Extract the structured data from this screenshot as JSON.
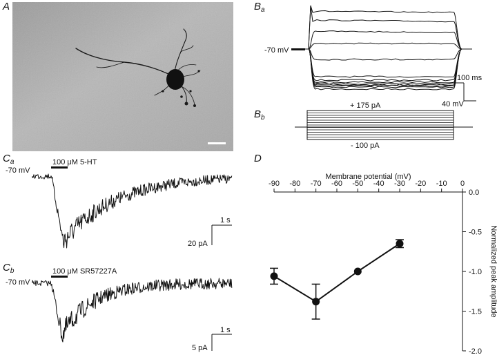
{
  "panels": {
    "A": {
      "label": "A"
    },
    "Ba": {
      "label": "B",
      "sub": "a",
      "holding": "-70 mV",
      "time_scale": "100 ms",
      "volt_scale": "40 mV"
    },
    "Bb": {
      "label": "B",
      "sub": "b",
      "top_step": "+ 175 pA",
      "bottom_step": "- 100 pA"
    },
    "Ca": {
      "label": "C",
      "sub": "a",
      "drug": "100 μM 5-HT",
      "holding": "-70 mV",
      "time_scale": "1 s",
      "amp_scale": "20 pA"
    },
    "Cb": {
      "label": "C",
      "sub": "b",
      "drug": "100 μM SR57227A",
      "holding": "-70 mV",
      "time_scale": "1 s",
      "amp_scale": "5 pA"
    },
    "D": {
      "label": "D"
    }
  },
  "chart_data": {
    "type": "line",
    "xlabel": "Membrane potential (mV)",
    "ylabel": "Normalized peak amplitude",
    "xlim": [
      -90,
      0
    ],
    "ylim": [
      -2.0,
      0.0
    ],
    "xticks": [
      -90,
      -80,
      -70,
      -60,
      -50,
      -40,
      -30,
      -20,
      -10,
      0
    ],
    "yticks": [
      0.0,
      -0.5,
      -1.0,
      -1.5,
      -2.0
    ],
    "xtick_labels": [
      "-90",
      "-80",
      "-70",
      "-60",
      "-50",
      "-40",
      "-30",
      "-20",
      "-10",
      "0"
    ],
    "ytick_labels": [
      "0.0",
      "-0.5",
      "-1.0",
      "-1.5",
      "-2.0"
    ],
    "series": [
      {
        "x": [
          -90,
          -70,
          -50,
          -30
        ],
        "values": [
          -1.06,
          -1.38,
          -1.0,
          -0.65
        ],
        "err": [
          0.1,
          0.22,
          0.0,
          0.05
        ]
      }
    ]
  }
}
